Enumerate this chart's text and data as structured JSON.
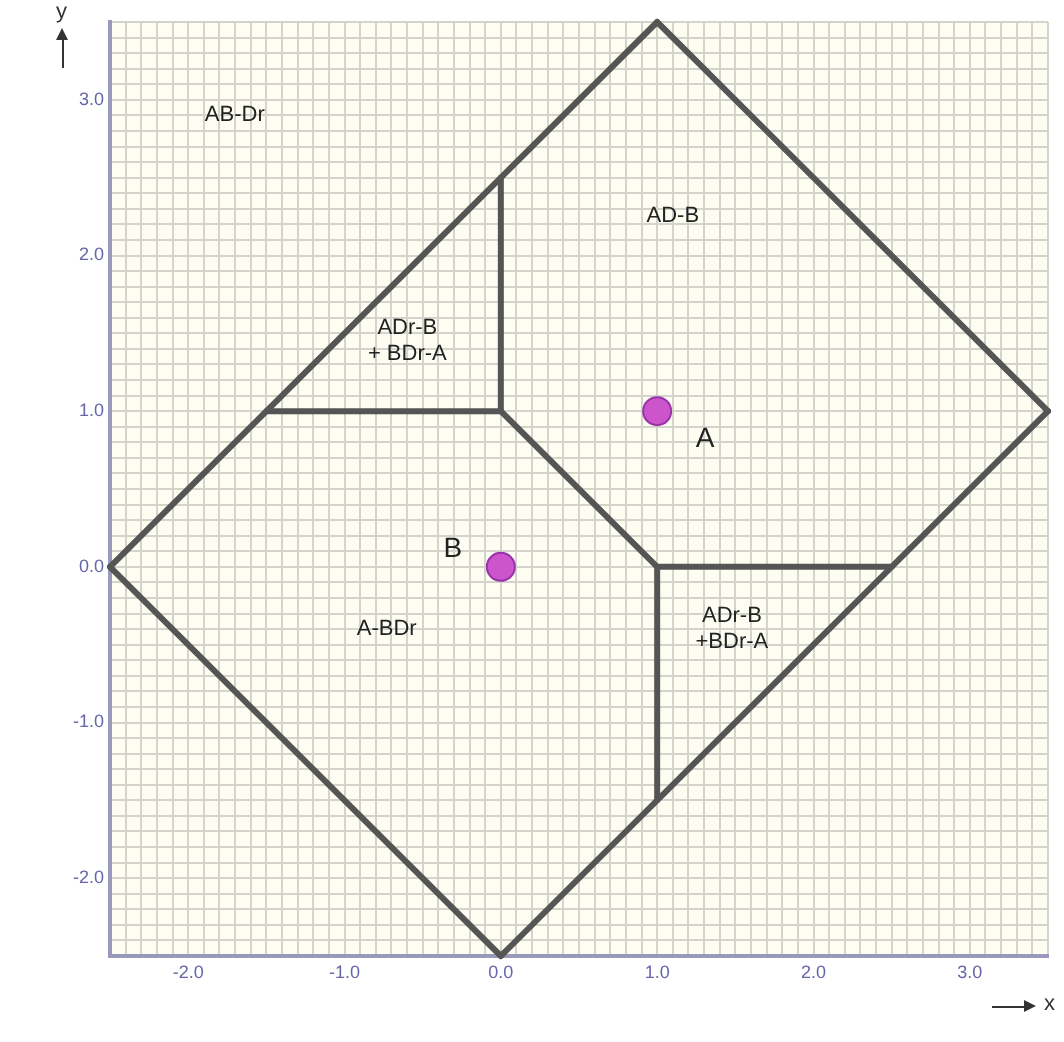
{
  "chart_data": {
    "type": "scatter",
    "xlabel": "x",
    "ylabel": "y",
    "xlim": [
      -2.5,
      3.5
    ],
    "ylim": [
      -2.5,
      3.5
    ],
    "xticks": [
      {
        "value": -2.5,
        "label": null
      },
      {
        "value": -2.4,
        "label": null
      },
      {
        "value": -2.3,
        "label": null
      },
      {
        "value": -2.2,
        "label": null
      },
      {
        "value": -2.1,
        "label": null
      },
      {
        "value": -2,
        "label": "-2.0"
      },
      {
        "value": -1.9,
        "label": null
      },
      {
        "value": -1.8,
        "label": null
      },
      {
        "value": -1.7,
        "label": null
      },
      {
        "value": -1.6,
        "label": null
      },
      {
        "value": -1.5,
        "label": null
      },
      {
        "value": -1.4,
        "label": null
      },
      {
        "value": -1.3,
        "label": null
      },
      {
        "value": -1.2,
        "label": null
      },
      {
        "value": -1.1,
        "label": null
      },
      {
        "value": -1,
        "label": "-1.0"
      },
      {
        "value": -0.9,
        "label": null
      },
      {
        "value": -0.8,
        "label": null
      },
      {
        "value": -0.7,
        "label": null
      },
      {
        "value": -0.6,
        "label": null
      },
      {
        "value": -0.5,
        "label": null
      },
      {
        "value": -0.4,
        "label": null
      },
      {
        "value": -0.3,
        "label": null
      },
      {
        "value": -0.2,
        "label": null
      },
      {
        "value": -0.1,
        "label": null
      },
      {
        "value": 0,
        "label": "0.0"
      },
      {
        "value": 0.1,
        "label": null
      },
      {
        "value": 0.2,
        "label": null
      },
      {
        "value": 0.3,
        "label": null
      },
      {
        "value": 0.4,
        "label": null
      },
      {
        "value": 0.5,
        "label": null
      },
      {
        "value": 0.6,
        "label": null
      },
      {
        "value": 0.7,
        "label": null
      },
      {
        "value": 0.8,
        "label": null
      },
      {
        "value": 0.9,
        "label": null
      },
      {
        "value": 1,
        "label": "1.0"
      },
      {
        "value": 1.1,
        "label": null
      },
      {
        "value": 1.2,
        "label": null
      },
      {
        "value": 1.3,
        "label": null
      },
      {
        "value": 1.4,
        "label": null
      },
      {
        "value": 1.5,
        "label": null
      },
      {
        "value": 1.6,
        "label": null
      },
      {
        "value": 1.7,
        "label": null
      },
      {
        "value": 1.8,
        "label": null
      },
      {
        "value": 1.9,
        "label": null
      },
      {
        "value": 2,
        "label": "2.0"
      },
      {
        "value": 2.1,
        "label": null
      },
      {
        "value": 2.2,
        "label": null
      },
      {
        "value": 2.3,
        "label": null
      },
      {
        "value": 2.4,
        "label": null
      },
      {
        "value": 2.5,
        "label": null
      },
      {
        "value": 2.6,
        "label": null
      },
      {
        "value": 2.7,
        "label": null
      },
      {
        "value": 2.8,
        "label": null
      },
      {
        "value": 2.9,
        "label": null
      },
      {
        "value": 3,
        "label": "3.0"
      },
      {
        "value": 3.1,
        "label": null
      },
      {
        "value": 3.2,
        "label": null
      },
      {
        "value": 3.3,
        "label": null
      },
      {
        "value": 3.4,
        "label": null
      },
      {
        "value": 3.5,
        "label": null
      }
    ],
    "yticks": [
      {
        "value": -2.5,
        "label": null
      },
      {
        "value": -2.4,
        "label": null
      },
      {
        "value": -2.3,
        "label": null
      },
      {
        "value": -2.2,
        "label": null
      },
      {
        "value": -2.1,
        "label": null
      },
      {
        "value": -2,
        "label": "-2.0"
      },
      {
        "value": -1.9,
        "label": null
      },
      {
        "value": -1.8,
        "label": null
      },
      {
        "value": -1.7,
        "label": null
      },
      {
        "value": -1.6,
        "label": null
      },
      {
        "value": -1.5,
        "label": null
      },
      {
        "value": -1.4,
        "label": null
      },
      {
        "value": -1.3,
        "label": null
      },
      {
        "value": -1.2,
        "label": null
      },
      {
        "value": -1.1,
        "label": null
      },
      {
        "value": -1,
        "label": "-1.0"
      },
      {
        "value": -0.9,
        "label": null
      },
      {
        "value": -0.8,
        "label": null
      },
      {
        "value": -0.7,
        "label": null
      },
      {
        "value": -0.6,
        "label": null
      },
      {
        "value": -0.5,
        "label": null
      },
      {
        "value": -0.4,
        "label": null
      },
      {
        "value": -0.3,
        "label": null
      },
      {
        "value": -0.2,
        "label": null
      },
      {
        "value": -0.1,
        "label": null
      },
      {
        "value": 0,
        "label": "0.0"
      },
      {
        "value": 0.1,
        "label": null
      },
      {
        "value": 0.2,
        "label": null
      },
      {
        "value": 0.3,
        "label": null
      },
      {
        "value": 0.4,
        "label": null
      },
      {
        "value": 0.5,
        "label": null
      },
      {
        "value": 0.6,
        "label": null
      },
      {
        "value": 0.7,
        "label": null
      },
      {
        "value": 0.8,
        "label": null
      },
      {
        "value": 0.9,
        "label": null
      },
      {
        "value": 1,
        "label": "1.0"
      },
      {
        "value": 1.1,
        "label": null
      },
      {
        "value": 1.2,
        "label": null
      },
      {
        "value": 1.3,
        "label": null
      },
      {
        "value": 1.4,
        "label": null
      },
      {
        "value": 1.5,
        "label": null
      },
      {
        "value": 1.6,
        "label": null
      },
      {
        "value": 1.7,
        "label": null
      },
      {
        "value": 1.8,
        "label": null
      },
      {
        "value": 1.9,
        "label": null
      },
      {
        "value": 2,
        "label": "2.0"
      },
      {
        "value": 2.1,
        "label": null
      },
      {
        "value": 2.2,
        "label": null
      },
      {
        "value": 2.3,
        "label": null
      },
      {
        "value": 2.4,
        "label": null
      },
      {
        "value": 2.5,
        "label": null
      },
      {
        "value": 2.6,
        "label": null
      },
      {
        "value": 2.7,
        "label": null
      },
      {
        "value": 2.8,
        "label": null
      },
      {
        "value": 2.9,
        "label": null
      },
      {
        "value": 3,
        "label": "3.0"
      },
      {
        "value": 3.1,
        "label": null
      },
      {
        "value": 3.2,
        "label": null
      },
      {
        "value": 3.3,
        "label": null
      },
      {
        "value": 3.4,
        "label": null
      },
      {
        "value": 3.5,
        "label": null
      }
    ],
    "grid": true,
    "legend": false,
    "series": [
      {
        "type": "line",
        "marker": "none",
        "color": "#555555",
        "x": [
          -2.5,
          1
        ],
        "values": [
          0,
          3.5
        ]
      },
      {
        "type": "line",
        "marker": "none",
        "color": "#555555",
        "x": [
          1,
          3.5
        ],
        "values": [
          3.5,
          1
        ]
      },
      {
        "type": "line",
        "marker": "none",
        "color": "#555555",
        "x": [
          0,
          3.5
        ],
        "values": [
          -2.5,
          1
        ]
      },
      {
        "type": "line",
        "marker": "none",
        "color": "#555555",
        "x": [
          -2.5,
          0
        ],
        "values": [
          0,
          -2.5
        ]
      },
      {
        "type": "line",
        "marker": "none",
        "color": "#555555",
        "x": [
          0,
          0
        ],
        "values": [
          1,
          2.5
        ]
      },
      {
        "type": "line",
        "marker": "none",
        "color": "#555555",
        "x": [
          -1.5,
          0
        ],
        "values": [
          1,
          1
        ]
      },
      {
        "type": "line",
        "marker": "none",
        "color": "#555555",
        "x": [
          0,
          1
        ],
        "values": [
          1,
          0
        ]
      },
      {
        "type": "line",
        "marker": "none",
        "color": "#555555",
        "x": [
          1,
          2.5
        ],
        "values": [
          0,
          0
        ]
      },
      {
        "type": "line",
        "marker": "none",
        "color": "#555555",
        "x": [
          1,
          1
        ],
        "values": [
          -1.5,
          0
        ]
      },
      {
        "marker": "circle",
        "name": "A",
        "color": "#cc55cc",
        "x": [
          1
        ],
        "values": [
          1
        ]
      },
      {
        "marker": "circle",
        "name": "B",
        "color": "#cc55cc",
        "x": [
          0
        ],
        "values": [
          0
        ]
      }
    ],
    "annotations": [
      "AB-Dr",
      "AD-B",
      "ADr-B\n+ BDr-A",
      "A-BDr",
      "ADr-B\n+BDr-A"
    ]
  }
}
